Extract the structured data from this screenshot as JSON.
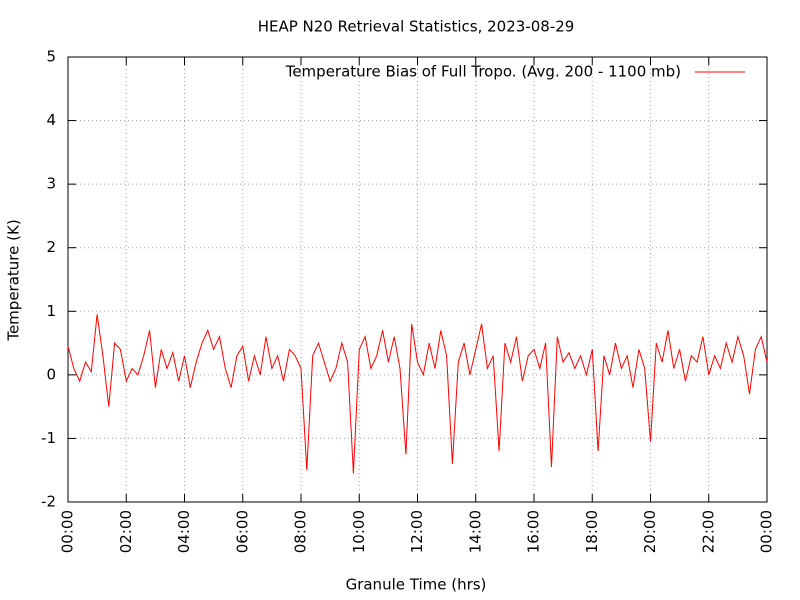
{
  "chart_data": {
    "type": "line",
    "title": "HEAP N20 Retrieval Statistics, 2023-08-29",
    "x_label": "Granule Time (hrs)",
    "y_label": "Temperature (K)",
    "x": [
      0,
      0.2,
      0.4,
      0.6,
      0.8,
      1,
      1.2,
      1.4,
      1.6,
      1.8,
      2,
      2.2,
      2.4,
      2.6,
      2.8,
      3,
      3.2,
      3.4,
      3.6,
      3.8,
      4,
      4.2,
      4.4,
      4.6,
      4.8,
      5,
      5.2,
      5.4,
      5.6,
      5.8,
      6,
      6.2,
      6.4,
      6.6,
      6.8,
      7,
      7.2,
      7.4,
      7.6,
      7.8,
      8,
      8.2,
      8.4,
      8.6,
      8.8,
      9,
      9.2,
      9.4,
      9.6,
      9.8,
      10,
      10.2,
      10.4,
      10.6,
      10.8,
      11,
      11.2,
      11.4,
      11.6,
      11.8,
      12,
      12.2,
      12.4,
      12.6,
      12.8,
      13,
      13.2,
      13.4,
      13.6,
      13.8,
      14,
      14.2,
      14.4,
      14.6,
      14.8,
      15,
      15.2,
      15.4,
      15.6,
      15.8,
      16,
      16.2,
      16.4,
      16.6,
      16.8,
      17,
      17.2,
      17.4,
      17.6,
      17.8,
      18,
      18.2,
      18.4,
      18.6,
      18.8,
      19,
      19.2,
      19.4,
      19.6,
      19.8,
      20,
      20.2,
      20.4,
      20.6,
      20.8,
      21,
      21.2,
      21.4,
      21.6,
      21.8,
      22,
      22.2,
      22.4,
      22.6,
      22.8,
      23,
      23.2,
      23.4,
      23.6,
      23.8,
      24
    ],
    "series": [
      {
        "name": "Temperature Bias of Full Tropo. (Avg. 200 - 1100 mb)",
        "color": "#ff0000",
        "values": [
          0.45,
          0.1,
          -0.1,
          0.2,
          0.05,
          0.95,
          0.3,
          -0.5,
          0.5,
          0.4,
          -0.1,
          0.1,
          0.0,
          0.3,
          0.7,
          -0.2,
          0.4,
          0.1,
          0.35,
          -0.1,
          0.3,
          -0.2,
          0.2,
          0.5,
          0.7,
          0.4,
          0.6,
          0.1,
          -0.2,
          0.3,
          0.45,
          -0.1,
          0.3,
          0.0,
          0.6,
          0.1,
          0.3,
          -0.1,
          0.4,
          0.3,
          0.1,
          -1.5,
          0.3,
          0.5,
          0.2,
          -0.1,
          0.1,
          0.5,
          0.2,
          -1.55,
          0.4,
          0.6,
          0.1,
          0.3,
          0.7,
          0.2,
          0.6,
          0.1,
          -1.25,
          0.8,
          0.2,
          0.0,
          0.5,
          0.1,
          0.7,
          0.3,
          -1.4,
          0.2,
          0.5,
          0.0,
          0.4,
          0.8,
          0.1,
          0.3,
          -1.2,
          0.5,
          0.2,
          0.6,
          -0.1,
          0.3,
          0.4,
          0.1,
          0.5,
          -1.45,
          0.6,
          0.2,
          0.35,
          0.1,
          0.3,
          0.0,
          0.4,
          -1.2,
          0.3,
          0.0,
          0.5,
          0.1,
          0.3,
          -0.2,
          0.4,
          0.1,
          -1.05,
          0.5,
          0.2,
          0.7,
          0.1,
          0.4,
          -0.1,
          0.3,
          0.2,
          0.6,
          0.0,
          0.3,
          0.1,
          0.5,
          0.2,
          0.6,
          0.3,
          -0.3,
          0.4,
          0.6,
          0.2
        ]
      }
    ],
    "xlim": [
      0,
      24
    ],
    "xticks": [
      {
        "value": 0,
        "label": "00:00"
      },
      {
        "value": 2,
        "label": "02:00"
      },
      {
        "value": 4,
        "label": "04:00"
      },
      {
        "value": 6,
        "label": "06:00"
      },
      {
        "value": 8,
        "label": "08:00"
      },
      {
        "value": 10,
        "label": "10:00"
      },
      {
        "value": 12,
        "label": "12:00"
      },
      {
        "value": 14,
        "label": "14:00"
      },
      {
        "value": 16,
        "label": "16:00"
      },
      {
        "value": 18,
        "label": "18:00"
      },
      {
        "value": 20,
        "label": "20:00"
      },
      {
        "value": 22,
        "label": "22:00"
      },
      {
        "value": 24,
        "label": "00:00"
      }
    ],
    "ylim": [
      -2,
      5
    ],
    "yticks": [
      -2,
      -1,
      0,
      1,
      2,
      3,
      4,
      5
    ],
    "grid": true,
    "legend": "top-right"
  }
}
